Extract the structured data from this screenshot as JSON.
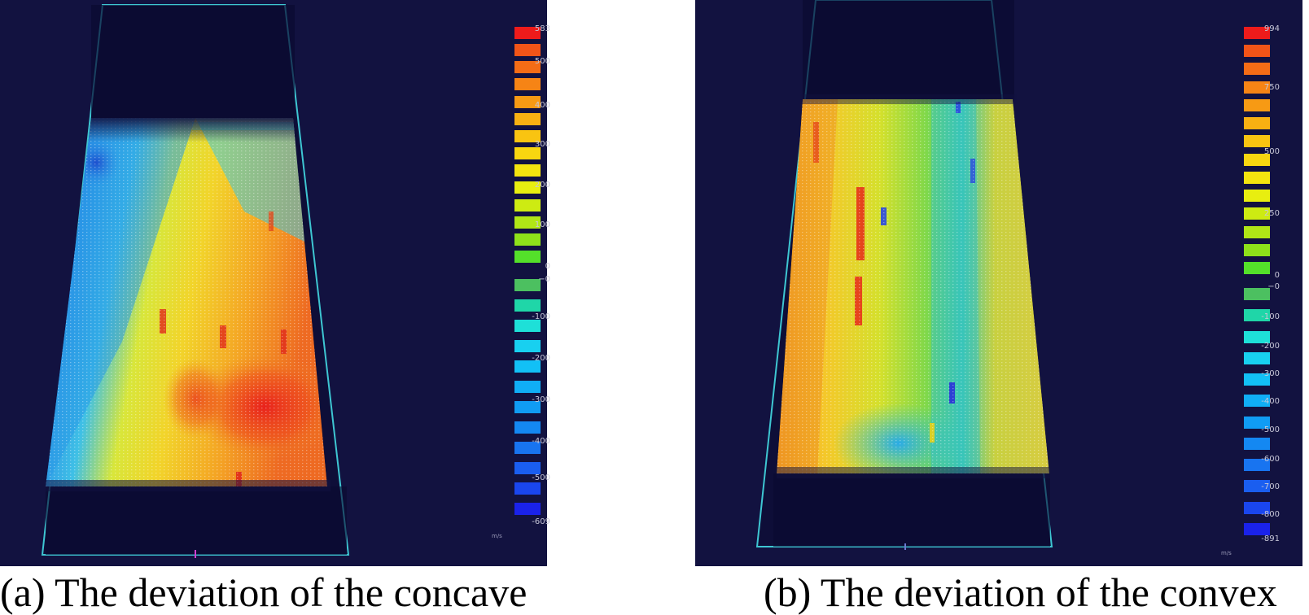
{
  "panels": [
    {
      "id": "a",
      "caption": "(a) The deviation of the concave",
      "legend": {
        "max_label": "583",
        "ticks_pos": [
          "500",
          "400",
          "300",
          "200",
          "100",
          "0"
        ],
        "ticks_neg": [
          "−0",
          "-100",
          "-200",
          "-300",
          "-400",
          "-500"
        ],
        "min_label": "-609",
        "unit": "m/s"
      }
    },
    {
      "id": "b",
      "caption": "(b) The deviation of the convex",
      "legend": {
        "max_label": "994",
        "ticks_pos": [
          "750",
          "500",
          "250",
          "0"
        ],
        "ticks_neg": [
          "−0",
          "-100",
          "-200",
          "-300",
          "-400",
          "-500",
          "-600",
          "-700",
          "-800"
        ],
        "min_label": "-891",
        "unit": "m/s"
      }
    }
  ],
  "colors": {
    "background": "#121240",
    "outline": "#3ec6d2",
    "scale_positive": [
      "#ee1b1b",
      "#f25418",
      "#f46c16",
      "#f68415",
      "#f79a14",
      "#f8b012",
      "#f9c411",
      "#f8d610",
      "#f4e40f",
      "#e8ee10",
      "#cdeb12",
      "#b0e616",
      "#8ee01a",
      "#54e02a"
    ],
    "scale_negative": [
      "#4cc060",
      "#1fd6a8",
      "#1ee0d8",
      "#18d0f0",
      "#12c0f6",
      "#10aef6",
      "#109cf4",
      "#1488f2",
      "#1874f0",
      "#1a5ef0",
      "#1a46ee",
      "#1a22ea"
    ]
  }
}
